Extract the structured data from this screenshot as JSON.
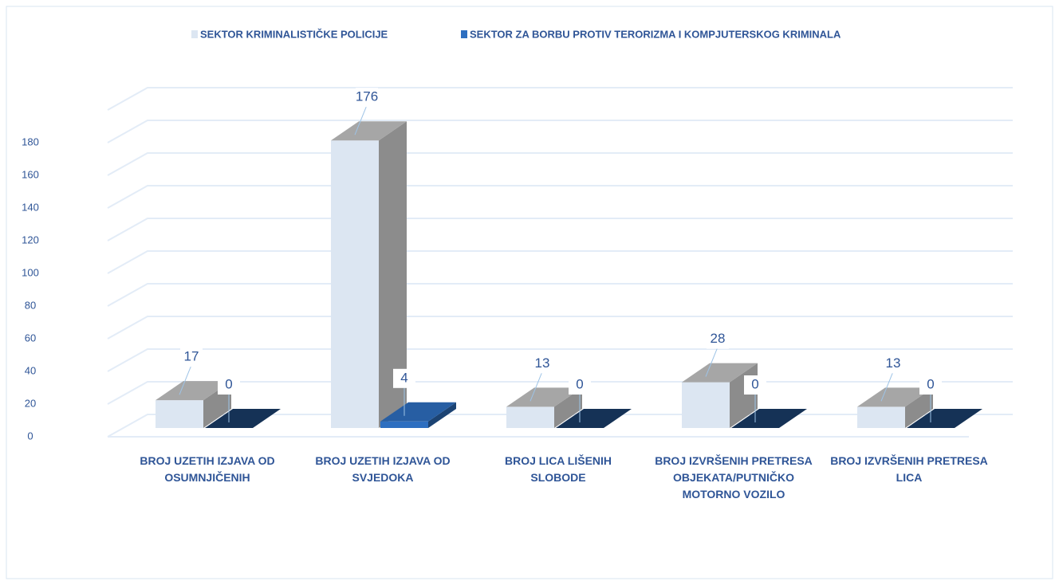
{
  "chart_data": {
    "type": "bar3d",
    "categories": [
      "BROJ UZETIH IZJAVA OD OSUMNJIČENIH",
      "BROJ UZETIH IZJAVA OD SVJEDOKA",
      "BROJ LICA LIŠENIH SLOBODE",
      "BROJ IZVRŠENIH PRETRESA OBJEKATA/PUTNIČKO MOTORNO VOZILO",
      "BROJ IZVRŠENIH PRETRESA LICA"
    ],
    "series": [
      {
        "name": "SEKTOR KRIMINALISTIČKE POLICIJE",
        "color": "#dce6f2",
        "values": [
          17,
          176,
          13,
          28,
          13
        ]
      },
      {
        "name": "SEKTOR ZA BORBU PROTIV TERORIZMA I KOMPJUTERSKOG KRIMINALA",
        "color": "#2e6fc0",
        "values": [
          0,
          4,
          0,
          0,
          0
        ]
      }
    ],
    "ylim": [
      0,
      200
    ],
    "yticks": [
      0,
      20,
      40,
      60,
      80,
      100,
      120,
      140,
      160,
      180
    ],
    "grid": true
  }
}
